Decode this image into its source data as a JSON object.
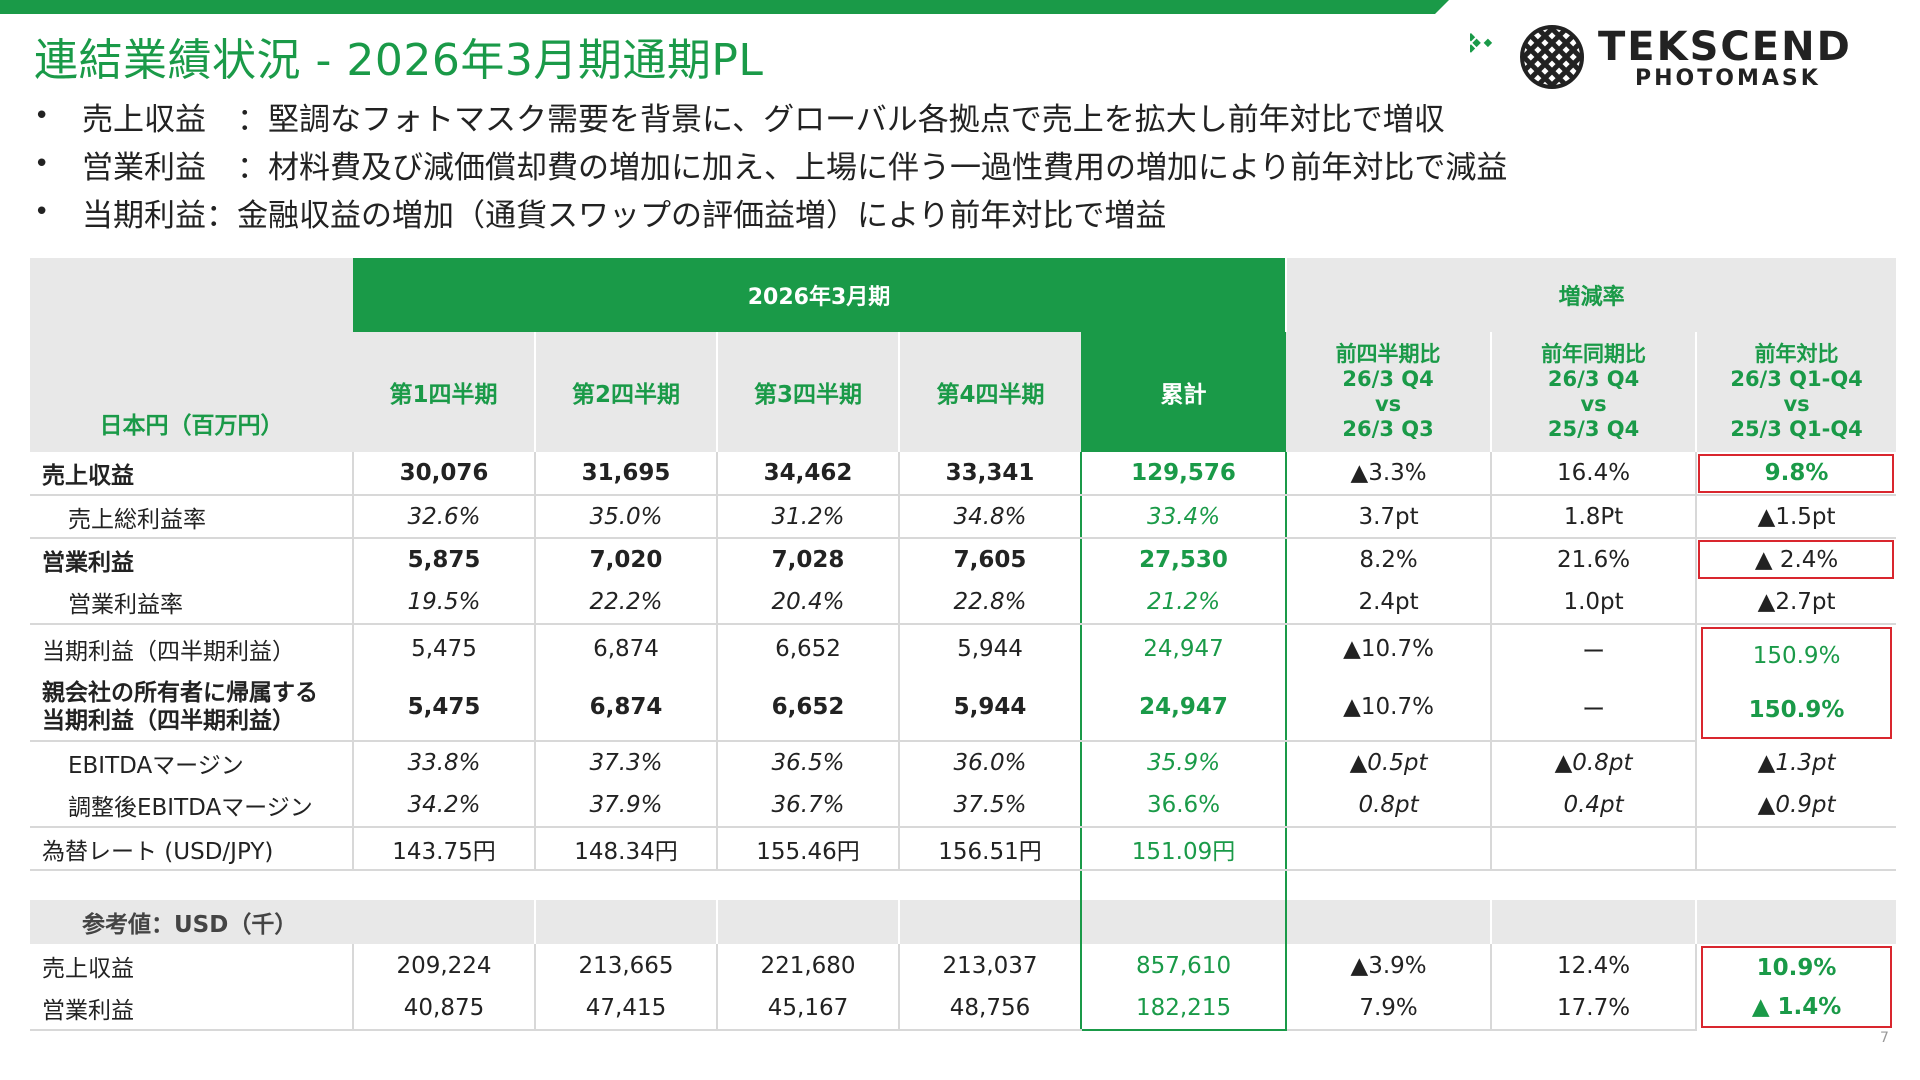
{
  "title": "連結業績状況 - 2026年3月期通期PL",
  "logo": {
    "line1": "TEKSCEND",
    "line2": "PHOTOMASK"
  },
  "bullets": [
    "売上収益　：堅調なフォトマスク需要を背景に、グローバル各拠点で売上を拡大し前年対比で増収",
    "営業利益　：材料費及び減価償却費の増加に加え、上場に伴う一過性費用の増加により前年対比で減益",
    "当期利益：金融収益の増加（通貨スワップの評価益増）により前年対比で増益"
  ],
  "bullet_symbol": "•",
  "table": {
    "group_period": "2026年3月期",
    "group_change": "増減率",
    "unit_label": "日本円（百万円）",
    "col_headers": [
      "第1四半期",
      "第2四半期",
      "第3四半期",
      "第4四半期",
      "累計"
    ],
    "change_headers": [
      [
        "前四半期比",
        "26/3 Q4",
        "vs",
        "26/3 Q3"
      ],
      [
        "前年同期比",
        "26/3 Q4",
        "vs",
        "25/3 Q4"
      ],
      [
        "前年対比",
        "26/3 Q1-Q4",
        "vs",
        "25/3 Q1-Q4"
      ]
    ],
    "rows": [
      {
        "label": "売上収益",
        "q": [
          "30,076",
          "31,695",
          "34,462",
          "33,341"
        ],
        "total": "129,576",
        "chg": [
          "▲3.3%",
          "16.4%",
          "9.8%"
        ]
      },
      {
        "label": "売上総利益率",
        "q": [
          "32.6%",
          "35.0%",
          "31.2%",
          "34.8%"
        ],
        "total": "33.4%",
        "chg": [
          "3.7pt",
          "1.8Pt",
          "▲1.5pt"
        ]
      },
      {
        "label": "営業利益",
        "q": [
          "5,875",
          "7,020",
          "7,028",
          "7,605"
        ],
        "total": "27,530",
        "chg": [
          "8.2%",
          "21.6%",
          "▲ 2.4%"
        ]
      },
      {
        "label": "営業利益率",
        "q": [
          "19.5%",
          "22.2%",
          "20.4%",
          "22.8%"
        ],
        "total": "21.2%",
        "chg": [
          "2.4pt",
          "1.0pt",
          "▲2.7pt"
        ]
      },
      {
        "label": "当期利益（四半期利益）",
        "q": [
          "5,475",
          "6,874",
          "6,652",
          "5,944"
        ],
        "total": "24,947",
        "chg": [
          "▲10.7%",
          "ー",
          "150.9%"
        ]
      },
      {
        "label1": "親会社の所有者に帰属する",
        "label2": "当期利益（四半期利益）",
        "q": [
          "5,475",
          "6,874",
          "6,652",
          "5,944"
        ],
        "total": "24,947",
        "chg": [
          "▲10.7%",
          "ー",
          "150.9%"
        ]
      },
      {
        "label": "EBITDAマージン",
        "q": [
          "33.8%",
          "37.3%",
          "36.5%",
          "36.0%"
        ],
        "total": "35.9%",
        "chg": [
          "▲0.5pt",
          "▲0.8pt",
          "▲1.3pt"
        ]
      },
      {
        "label": "調整後EBITDAマージン",
        "q": [
          "34.2%",
          "37.9%",
          "36.7%",
          "37.5%"
        ],
        "total": "36.6%",
        "chg": [
          "0.8pt",
          "0.4pt",
          "▲0.9pt"
        ]
      },
      {
        "label": "為替レート (USD/JPY)",
        "q": [
          "143.75円",
          "148.34円",
          "155.46円",
          "156.51円"
        ],
        "total": "151.09円",
        "chg": [
          "",
          "",
          ""
        ]
      }
    ],
    "ref_label": "参考値：USD（千）",
    "ref_rows": [
      {
        "label": "売上収益",
        "q": [
          "209,224",
          "213,665",
          "221,680",
          "213,037"
        ],
        "total": "857,610",
        "chg": [
          "▲3.9%",
          "12.4%",
          "10.9%"
        ]
      },
      {
        "label": "営業利益",
        "q": [
          "40,875",
          "47,415",
          "45,167",
          "48,756"
        ],
        "total": "182,215",
        "chg": [
          "7.9%",
          "17.7%",
          "▲ 1.4%"
        ]
      }
    ]
  },
  "page_number": "7",
  "colors": {
    "accent": "#1a9a48",
    "highlight_box": "#d9262e",
    "header_gray": "#e8e8e8"
  }
}
